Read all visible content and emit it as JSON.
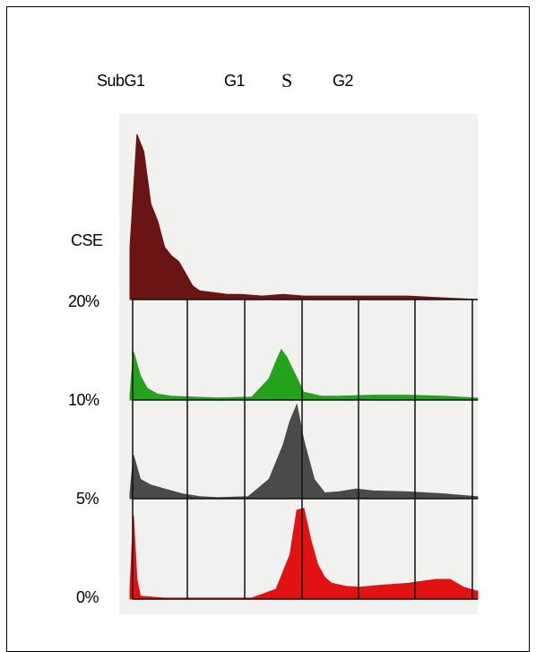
{
  "chart_data": {
    "type": "area",
    "title": "",
    "phase_labels": [
      "SubG1",
      "G1",
      "S",
      "G2"
    ],
    "row_labels": [
      "CSE",
      "20%",
      "10%",
      "5%",
      "0%"
    ],
    "xlabel": "",
    "ylabel": "",
    "grid": true,
    "series": [
      {
        "name": "CSE",
        "color": "#6b1414",
        "x": [
          0,
          2,
          4,
          6,
          8,
          10,
          12,
          14,
          16,
          18,
          20,
          24,
          28,
          32,
          38,
          44,
          50,
          60,
          70,
          80,
          90,
          100
        ],
        "values": [
          0.3,
          0.95,
          0.85,
          0.55,
          0.45,
          0.3,
          0.25,
          0.22,
          0.15,
          0.08,
          0.05,
          0.04,
          0.03,
          0.03,
          0.02,
          0.03,
          0.02,
          0.02,
          0.02,
          0.02,
          0.01,
          0.0
        ]
      },
      {
        "name": "20%",
        "color": "#22a31b",
        "x": [
          0,
          1,
          3,
          5,
          8,
          12,
          18,
          25,
          35,
          40,
          42,
          43.5,
          45,
          47,
          50,
          55,
          60,
          70,
          80,
          90,
          100
        ],
        "values": [
          0.05,
          0.5,
          0.25,
          0.12,
          0.06,
          0.04,
          0.03,
          0.02,
          0.03,
          0.22,
          0.4,
          0.52,
          0.45,
          0.3,
          0.08,
          0.04,
          0.04,
          0.05,
          0.05,
          0.04,
          0.02
        ]
      },
      {
        "name": "10%",
        "color": "#4a4a4a",
        "x": [
          0,
          1,
          3,
          6,
          10,
          15,
          20,
          25,
          34,
          40,
          44,
          46,
          48,
          50,
          53,
          56,
          60,
          65,
          70,
          80,
          90,
          100
        ],
        "values": [
          0.05,
          0.45,
          0.2,
          0.14,
          0.1,
          0.05,
          0.02,
          0.01,
          0.02,
          0.2,
          0.55,
          0.8,
          0.97,
          0.6,
          0.2,
          0.06,
          0.07,
          0.1,
          0.08,
          0.07,
          0.05,
          0.02
        ]
      },
      {
        "name": "5%",
        "color": "#e01212",
        "x": [
          0,
          1,
          2,
          3,
          10,
          20,
          35,
          42,
          46,
          48,
          50,
          52,
          54,
          56,
          58,
          62,
          66,
          72,
          80,
          88,
          92,
          96,
          100
        ],
        "values": [
          0.1,
          0.85,
          0.2,
          0.03,
          0.01,
          0.01,
          0.01,
          0.1,
          0.45,
          0.9,
          0.92,
          0.6,
          0.35,
          0.22,
          0.16,
          0.13,
          0.12,
          0.14,
          0.16,
          0.2,
          0.2,
          0.12,
          0.08
        ]
      }
    ]
  }
}
